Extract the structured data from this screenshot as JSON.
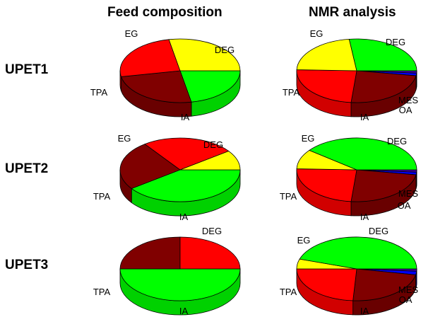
{
  "columns": [
    "Feed composition",
    "NMR analysis"
  ],
  "rows": [
    "UPET1",
    "UPET2",
    "UPET3"
  ],
  "colors": {
    "TPA": "#ff0000",
    "IA": "#800000",
    "DEG": "#00ff00",
    "EG": "#ffff00",
    "MES": "#0000ff",
    "OA": "#4000a0"
  },
  "chart_data": [
    {
      "type": "pie",
      "row": "UPET1",
      "column": "Feed composition",
      "slices": [
        {
          "label": "DEG",
          "value": 22
        },
        {
          "label": "IA",
          "value": 25
        },
        {
          "label": "TPA",
          "value": 25
        },
        {
          "label": "EG",
          "value": 28
        }
      ]
    },
    {
      "type": "pie",
      "row": "UPET1",
      "column": "NMR analysis",
      "slices": [
        {
          "label": "OA",
          "value": 1.2
        },
        {
          "label": "MES",
          "value": 1.3
        },
        {
          "label": "IA",
          "value": 24
        },
        {
          "label": "TPA",
          "value": 24
        },
        {
          "label": "EG",
          "value": 22.5
        },
        {
          "label": "DEG",
          "value": 27
        }
      ]
    },
    {
      "type": "pie",
      "row": "UPET2",
      "column": "Feed composition",
      "slices": [
        {
          "label": "DEG",
          "value": 40
        },
        {
          "label": "IA",
          "value": 25
        },
        {
          "label": "TPA",
          "value": 25
        },
        {
          "label": "EG",
          "value": 10
        }
      ]
    },
    {
      "type": "pie",
      "row": "UPET2",
      "column": "NMR analysis",
      "slices": [
        {
          "label": "OA",
          "value": 1.2
        },
        {
          "label": "MES",
          "value": 1.3
        },
        {
          "label": "IA",
          "value": 24
        },
        {
          "label": "TPA",
          "value": 24
        },
        {
          "label": "EG",
          "value": 10
        },
        {
          "label": "DEG",
          "value": 39.5
        }
      ]
    },
    {
      "type": "pie",
      "row": "UPET3",
      "column": "Feed composition",
      "slices": [
        {
          "label": "DEG",
          "value": 50
        },
        {
          "label": "IA",
          "value": 25
        },
        {
          "label": "TPA",
          "value": 25
        }
      ]
    },
    {
      "type": "pie",
      "row": "UPET3",
      "column": "NMR analysis",
      "slices": [
        {
          "label": "OA",
          "value": 1.2
        },
        {
          "label": "MES",
          "value": 1.8
        },
        {
          "label": "IA",
          "value": 23
        },
        {
          "label": "TPA",
          "value": 24
        },
        {
          "label": "EG",
          "value": 5
        },
        {
          "label": "DEG",
          "value": 45
        }
      ]
    }
  ]
}
